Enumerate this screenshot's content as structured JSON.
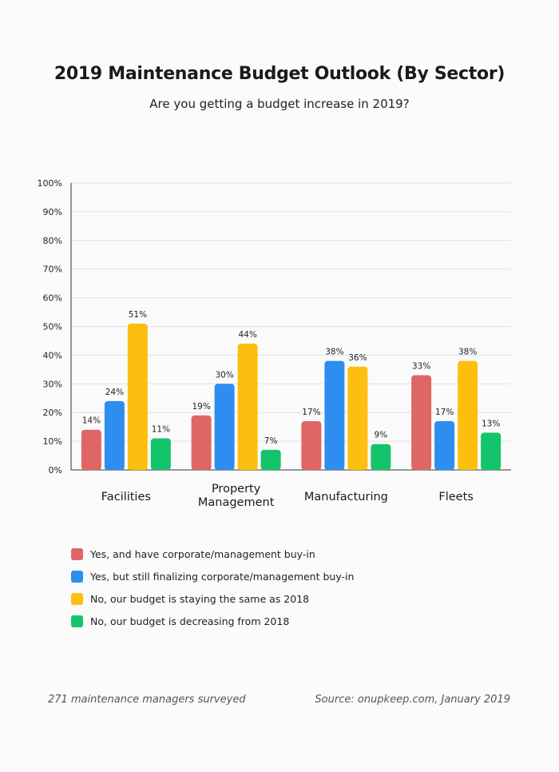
{
  "colors": {
    "red": "#e06666",
    "blue": "#2d8ef0",
    "yellow": "#fcbf0f",
    "green": "#14c46a",
    "grid": "#e2e2e2",
    "axis": "#333333"
  },
  "header": {
    "title": "2019 Maintenance Budget Outlook (By Sector)",
    "subtitle": "Are you getting a budget increase in 2019?"
  },
  "legend": {
    "items": [
      {
        "label": "Yes, and have corporate/management buy-in",
        "color": "#e06666"
      },
      {
        "label": "Yes, but still finalizing corporate/management buy-in",
        "color": "#2d8ef0"
      },
      {
        "label": "No, our budget is staying the same as 2018",
        "color": "#fcbf0f"
      },
      {
        "label": "No, our budget is decreasing from 2018",
        "color": "#14c46a"
      }
    ]
  },
  "footer": {
    "left": "271 maintenance managers surveyed",
    "right": "Source: onupkeep.com, January 2019"
  },
  "chart_data": {
    "type": "bar",
    "categories": [
      [
        "Facilities"
      ],
      [
        "Property",
        "Management"
      ],
      [
        "Manufacturing"
      ],
      [
        "Fleets"
      ]
    ],
    "series": [
      {
        "name": "Yes, and have corporate/management buy-in",
        "values": [
          14,
          19,
          17,
          33
        ],
        "color": "#e06666"
      },
      {
        "name": "Yes, but still finalizing corporate/management buy-in",
        "values": [
          24,
          30,
          38,
          17
        ],
        "color": "#2d8ef0"
      },
      {
        "name": "No, our budget is staying the same as 2018",
        "values": [
          51,
          44,
          36,
          38
        ],
        "color": "#fcbf0f"
      },
      {
        "name": "No, our budget is decreasing from 2018",
        "values": [
          11,
          7,
          9,
          13
        ],
        "color": "#14c46a"
      }
    ],
    "value_suffix": "%",
    "yticks": [
      "0%",
      "10%",
      "20%",
      "30%",
      "40%",
      "50%",
      "60%",
      "70%",
      "80%",
      "90%",
      "100%"
    ],
    "ylim": [
      0,
      100
    ],
    "grid": true,
    "legend_position": "bottom-left"
  }
}
